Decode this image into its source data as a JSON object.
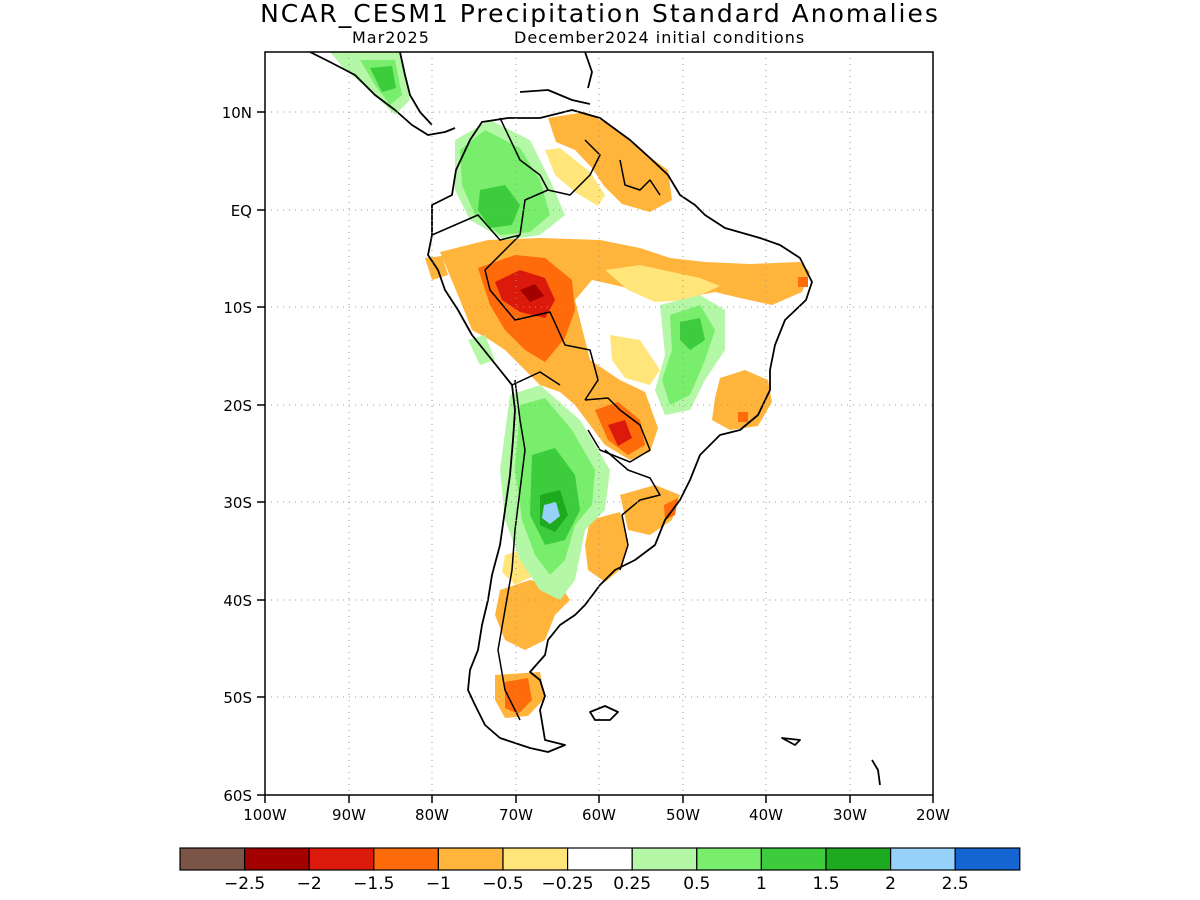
{
  "title": "NCAR_CESM1 Precipitation Standard Anomalies",
  "subtitle_left": "Mar2025",
  "subtitle_right": "December2024 initial conditions",
  "map": {
    "lon_range": [
      -100,
      -20
    ],
    "lat_range": [
      -60,
      15
    ],
    "lon_ticks": [
      "100W",
      "90W",
      "80W",
      "70W",
      "60W",
      "50W",
      "40W",
      "30W",
      "20W"
    ],
    "lat_ticks": [
      "10N",
      "EQ",
      "10S",
      "20S",
      "30S",
      "40S",
      "50S",
      "60S"
    ]
  },
  "colorbar": {
    "colors": [
      "#7a5446",
      "#a30000",
      "#dc1a0c",
      "#ff6a0a",
      "#ffb43c",
      "#ffe57a",
      "#ffffff",
      "#b4f7a6",
      "#78ee6c",
      "#3ccc3c",
      "#1eaa1e",
      "#96d2fa",
      "#1464d2"
    ],
    "labels": [
      "−2.5",
      "−2",
      "−1.5",
      "−1",
      "−0.5",
      "−0.25",
      "0.25",
      "0.5",
      "1",
      "1.5",
      "2",
      "2.5"
    ]
  }
}
